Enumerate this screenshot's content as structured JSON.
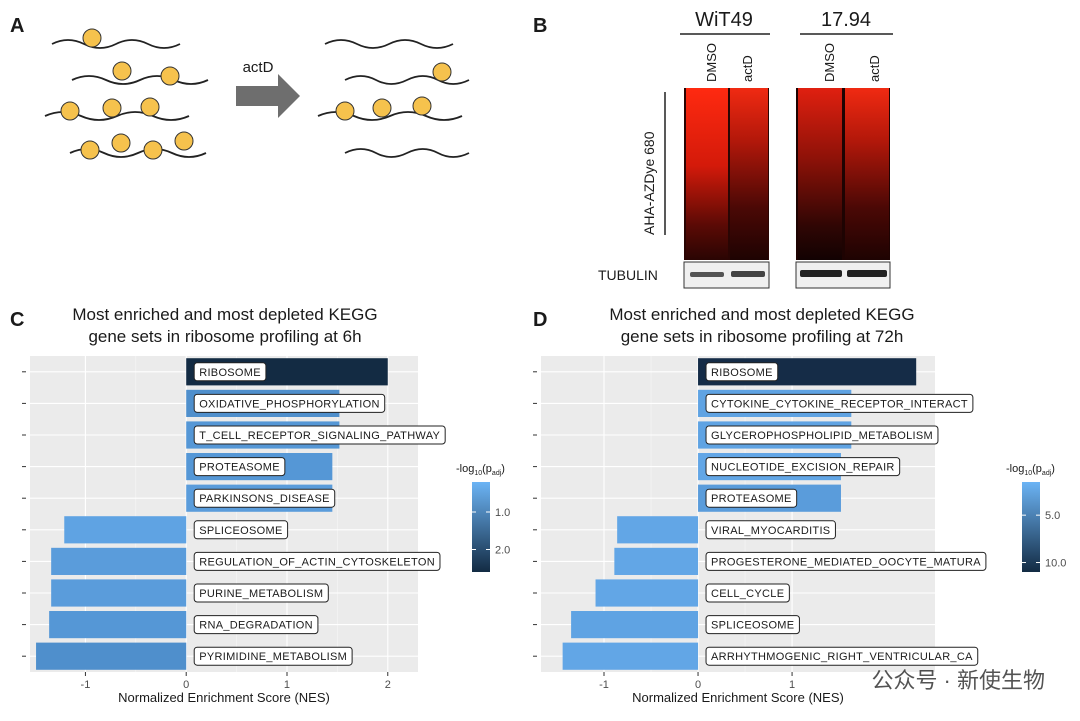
{
  "panels": {
    "A": {
      "label": "A",
      "arrow_label": "actD"
    },
    "B": {
      "label": "B",
      "groups": [
        "WiT49",
        "17.94"
      ],
      "lanes": [
        "DMSO",
        "actD",
        "DMSO",
        "actD"
      ],
      "y_label": "AHA-AZDye 680",
      "loading_control": "TUBULIN"
    },
    "C": {
      "label": "C"
    },
    "D": {
      "label": "D"
    }
  },
  "watermark": "公众号 · 新使生物",
  "chart_data": [
    {
      "type": "bar",
      "orientation": "horizontal",
      "title": [
        "Most enriched and most depleted KEGG",
        "gene sets in ribosome profiling at 6h"
      ],
      "x_label": "Normalized Enrichment Score (NES)",
      "categories": [
        "RIBOSOME",
        "OXIDATIVE_PHOSPHORYLATION",
        "T_CELL_RECEPTOR_SIGNALING_PATHWAY",
        "PROTEASOME",
        "PARKINSONS_DISEASE",
        "SPLICEOSOME",
        "REGULATION_OF_ACTIN_CYTOSKELETON",
        "PURINE_METABOLISM",
        "RNA_DEGRADATION",
        "PYRIMIDINE_METABOLISM"
      ],
      "values": [
        2.0,
        1.52,
        1.52,
        1.45,
        1.45,
        -1.21,
        -1.34,
        -1.34,
        -1.36,
        -1.49
      ],
      "colors": [
        "#132b43",
        "#4f8fcc",
        "#5597d6",
        "#5597d6",
        "#5a9cdb",
        "#5fa3e3",
        "#5a9cdb",
        "#5a9cdb",
        "#5597d6",
        "#4f8fcc"
      ],
      "xlim": [
        -1.55,
        2.3
      ],
      "xticks": [
        -1,
        0,
        1,
        2
      ],
      "grid": true,
      "legend": {
        "title_parts": [
          "-log",
          "10",
          "(p",
          "adj",
          ")"
        ],
        "clim": [
          0.2,
          2.6
        ],
        "colors": [
          "#6cb4f5",
          "#132b43"
        ],
        "ticks": [
          {
            "value": 1.0,
            "label": "1.0"
          },
          {
            "value": 2.0,
            "label": "2.0"
          }
        ]
      }
    },
    {
      "type": "bar",
      "orientation": "horizontal",
      "title": [
        "Most enriched and most depleted KEGG",
        "gene sets in ribosome profiling at 72h"
      ],
      "x_label": "Normalized Enrichment Score (NES)",
      "categories": [
        "RIBOSOME",
        "CYTOKINE_CYTOKINE_RECEPTOR_INTERACT",
        "GLYCEROPHOSPHOLIPID_METABOLISM",
        "NUCLEOTIDE_EXCISION_REPAIR",
        "PROTEASOME",
        "VIRAL_MYOCARDITIS",
        "PROGESTERONE_MEDIATED_OOCYTE_MATURA",
        "CELL_CYCLE",
        "SPLICEOSOME",
        "ARRHYTHMOGENIC_RIGHT_VENTRICULAR_CA"
      ],
      "values": [
        2.32,
        1.63,
        1.63,
        1.52,
        1.52,
        -0.86,
        -0.89,
        -1.09,
        -1.35,
        -1.44
      ],
      "colors": [
        "#152c47",
        "#5fa3e3",
        "#5fa3e3",
        "#62a6e6",
        "#5a9cdb",
        "#62a6e6",
        "#62a6e6",
        "#62a6e6",
        "#5fa3e3",
        "#62a6e6"
      ],
      "xlim": [
        -1.67,
        2.52
      ],
      "xticks": [
        -1,
        0,
        1
      ],
      "grid": true,
      "legend": {
        "title_parts": [
          "-log",
          "10",
          "(p",
          "adj",
          ")"
        ],
        "clim": [
          1.5,
          11
        ],
        "colors": [
          "#6cb4f5",
          "#132b43"
        ],
        "ticks": [
          {
            "value": 5.0,
            "label": "5.0"
          },
          {
            "value": 10.0,
            "label": "10.0"
          }
        ]
      }
    }
  ]
}
